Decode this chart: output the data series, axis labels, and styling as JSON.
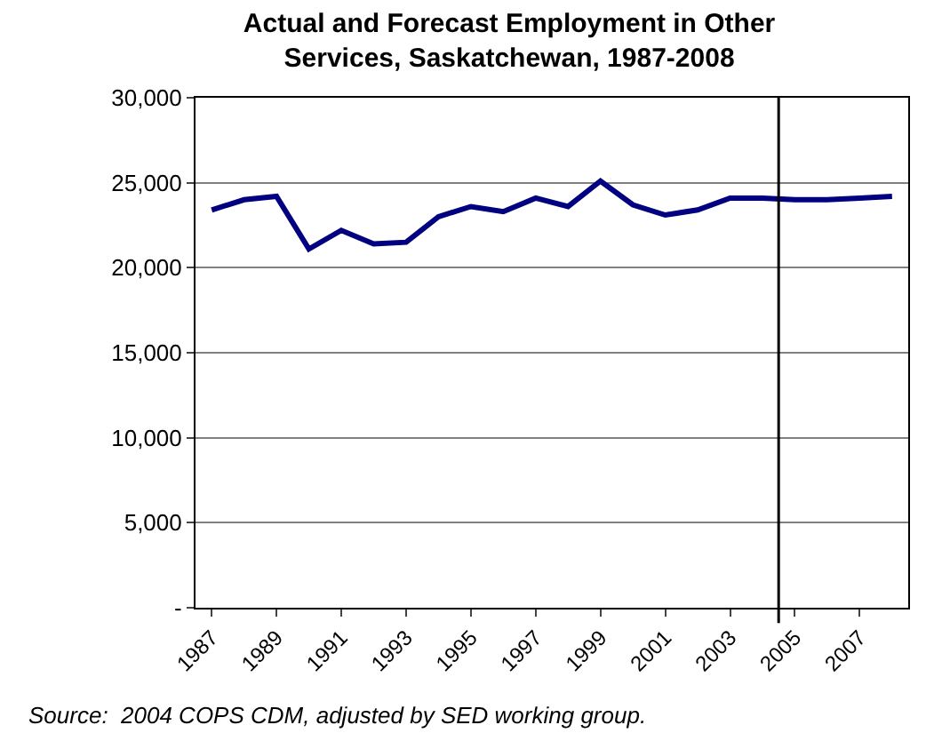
{
  "chart_data": {
    "type": "line",
    "title": "Actual and Forecast Employment in Other\nServices, Saskatchewan, 1987-2008",
    "x": [
      1987,
      1988,
      1989,
      1990,
      1991,
      1992,
      1993,
      1994,
      1995,
      1996,
      1997,
      1998,
      1999,
      2000,
      2001,
      2002,
      2003,
      2004,
      2005,
      2006,
      2007,
      2008
    ],
    "series": [
      {
        "color": "#000080",
        "values": [
          23400,
          24000,
          24200,
          21100,
          22200,
          21400,
          21500,
          23000,
          23600,
          23300,
          24100,
          23600,
          25100,
          23700,
          23100,
          23400,
          24100,
          24100,
          24000,
          24000,
          24100,
          24200
        ]
      }
    ],
    "xlim": [
      1986.5,
      2008.5
    ],
    "xticks": [
      1987,
      1989,
      1991,
      1993,
      1995,
      1997,
      1999,
      2001,
      2003,
      2005,
      2007
    ],
    "ylim": [
      0,
      30000
    ],
    "yticks": [
      {
        "value": 0,
        "label": "-"
      },
      {
        "value": 5000,
        "label": "5,000"
      },
      {
        "value": 10000,
        "label": "10,000"
      },
      {
        "value": 15000,
        "label": "15,000"
      },
      {
        "value": 20000,
        "label": "20,000"
      },
      {
        "value": 25000,
        "label": "25,000"
      },
      {
        "value": 30000,
        "label": "30,000"
      }
    ],
    "grid": "y",
    "marker": "none",
    "line_style": "solid",
    "ref_lines": [
      {
        "axis": "x",
        "value": 2004.5,
        "color": "#000000"
      }
    ],
    "annotations": [
      "Source:  2004 COPS CDM, adjusted by SED working group."
    ]
  }
}
